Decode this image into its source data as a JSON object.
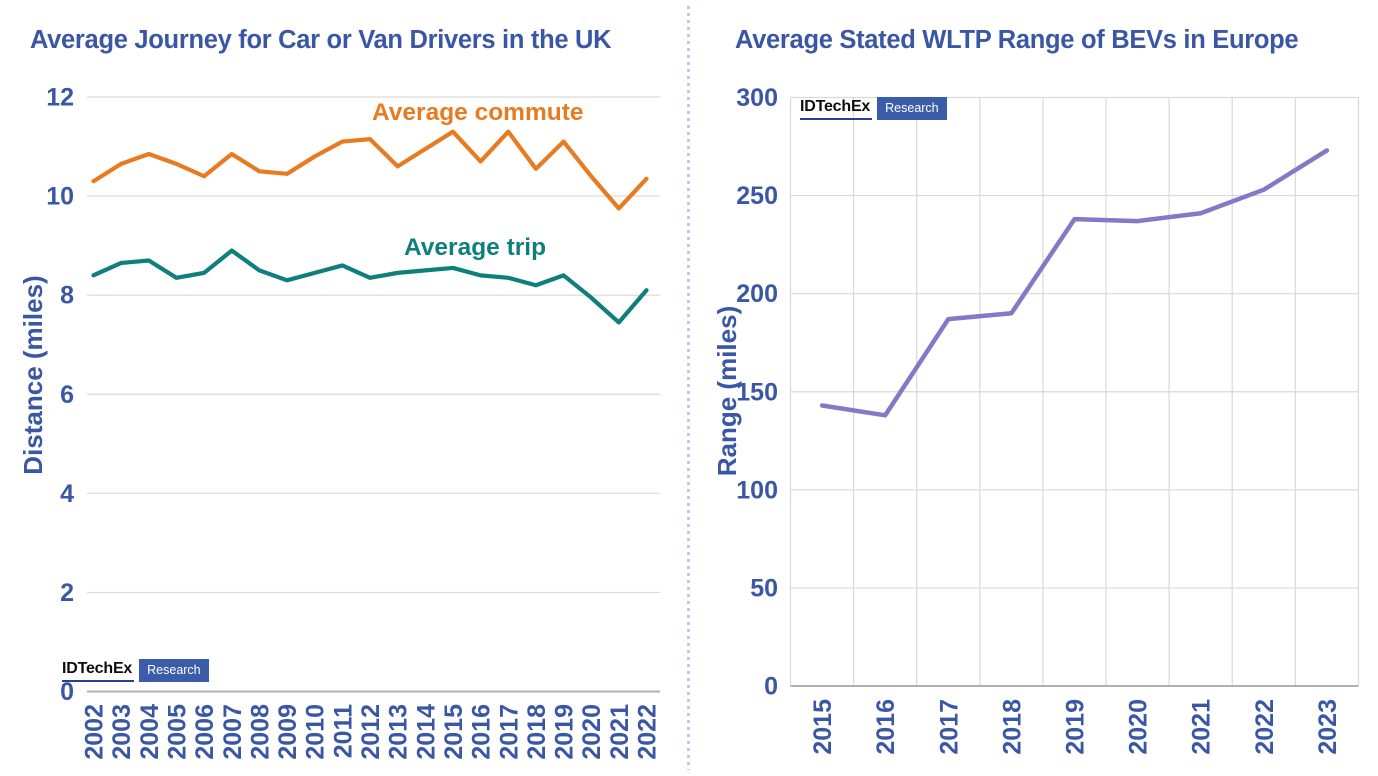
{
  "theme": {
    "text_color": "#3a57a6",
    "grid_color": "#d9d9d9",
    "axis_color": "#b0b0b0",
    "background": "#ffffff",
    "divider_color": "#b8cbe9"
  },
  "logo": {
    "brand": "IDTechEx",
    "sub": "Research",
    "box_color": "#3b5ca8",
    "underline_color": "#27408f"
  },
  "chart_data": [
    {
      "type": "line",
      "title": "Average Journey for Car or Van Drivers in the UK",
      "xlabel": "",
      "ylabel": "Distance (miles)",
      "categories": [
        "2002",
        "2003",
        "2004",
        "2005",
        "2006",
        "2007",
        "2008",
        "2009",
        "2010",
        "2011",
        "2012",
        "2013",
        "2014",
        "2015",
        "2016",
        "2017",
        "2018",
        "2019",
        "2020",
        "2021",
        "2022"
      ],
      "series": [
        {
          "name": "Average commute",
          "color": "#e87a20",
          "values": [
            10.3,
            10.65,
            10.85,
            10.65,
            10.4,
            10.85,
            10.5,
            10.45,
            10.8,
            11.1,
            11.15,
            10.6,
            10.95,
            11.3,
            10.7,
            11.3,
            10.55,
            11.1,
            10.4,
            9.75,
            10.35
          ]
        },
        {
          "name": "Average trip",
          "color": "#0e7f7c",
          "values": [
            8.4,
            8.65,
            8.7,
            8.35,
            8.45,
            8.9,
            8.5,
            8.3,
            8.45,
            8.6,
            8.35,
            8.45,
            8.5,
            8.55,
            8.4,
            8.35,
            8.2,
            8.4,
            7.95,
            7.45,
            8.1
          ]
        }
      ],
      "ylim": [
        0,
        12
      ],
      "yticks": [
        0,
        2,
        4,
        6,
        8,
        10,
        12
      ],
      "grid": "horizontal",
      "legend_position": "inline-annotations"
    },
    {
      "type": "line",
      "title": "Average Stated WLTP Range of BEVs in Europe",
      "xlabel": "",
      "ylabel": "Range (miles)",
      "categories": [
        "2015",
        "2016",
        "2017",
        "2018",
        "2019",
        "2020",
        "2021",
        "2022",
        "2023"
      ],
      "series": [
        {
          "color": "#8379c6",
          "values": [
            143,
            138,
            187,
            190,
            238,
            237,
            241,
            253,
            273
          ]
        }
      ],
      "ylim": [
        0,
        300
      ],
      "yticks": [
        0,
        50,
        100,
        150,
        200,
        250,
        300
      ],
      "grid": "both",
      "legend_position": "none"
    }
  ]
}
